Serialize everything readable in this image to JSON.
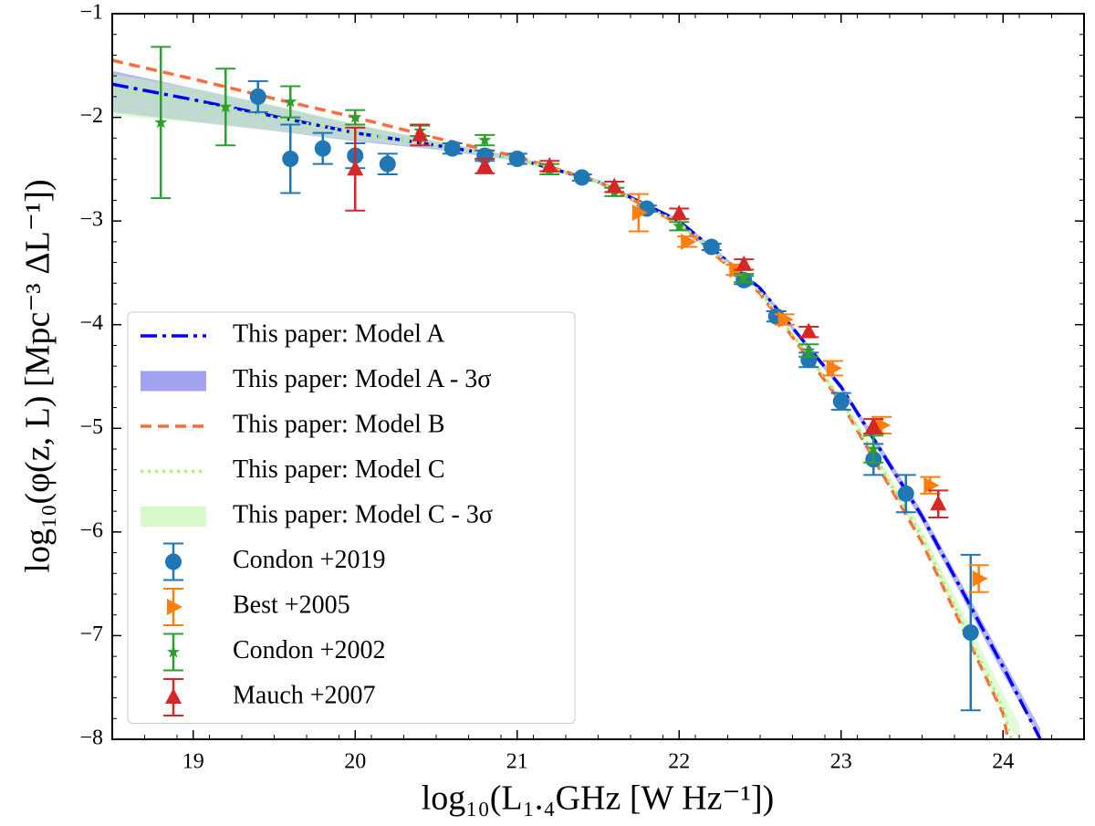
{
  "chart_data": {
    "type": "errorbar",
    "xlabel": "log₁₀(L₁.₄GHz [W Hz⁻¹])",
    "ylabel": "log₁₀(φ(z, L) [Mpc⁻³ ΔL⁻¹])",
    "xlim": [
      18.5,
      24.5
    ],
    "ylim": [
      -8,
      -1
    ],
    "xticks": [
      19,
      20,
      21,
      22,
      23,
      24
    ],
    "yticks": [
      {
        "value": -8,
        "label": "−8"
      },
      {
        "value": -7,
        "label": "−7"
      },
      {
        "value": -6,
        "label": "−6"
      },
      {
        "value": -5,
        "label": "−5"
      },
      {
        "value": -4,
        "label": "−4"
      },
      {
        "value": -3,
        "label": "−3"
      },
      {
        "value": -2,
        "label": "−2"
      },
      {
        "value": -1,
        "label": "−1"
      }
    ],
    "legend": "lower left",
    "series": [
      {
        "name": "This paper: Model A",
        "kind": "line",
        "dash": "dashdot",
        "color": "#0000ff",
        "x": [
          18.5,
          19,
          19.5,
          20,
          20.5,
          21,
          21.5,
          22,
          22.5,
          23,
          23.5,
          24,
          24.23
        ],
        "values": [
          -1.68,
          -1.83,
          -1.99,
          -2.15,
          -2.27,
          -2.4,
          -2.62,
          -3.0,
          -3.65,
          -4.6,
          -5.85,
          -7.3,
          -8.0
        ]
      },
      {
        "name": "This paper: Model A - 3σ",
        "kind": "band",
        "color": "#7b7bea",
        "x": [
          18.5,
          19,
          19.5,
          20,
          20.5,
          21,
          21.5,
          22,
          22.5,
          23,
          23.5,
          24,
          24.23
        ],
        "lower": [
          -1.95,
          -2.04,
          -2.13,
          -2.23,
          -2.31,
          -2.42,
          -2.64,
          -3.02,
          -3.67,
          -4.63,
          -5.9,
          -7.37,
          -8.0
        ],
        "upper": [
          -1.55,
          -1.72,
          -1.89,
          -2.07,
          -2.23,
          -2.38,
          -2.6,
          -2.98,
          -3.63,
          -4.57,
          -5.8,
          -7.23,
          -7.9
        ]
      },
      {
        "name": "This paper: Model B",
        "kind": "line",
        "dash": "dashed",
        "color": "#ff6b3d",
        "x": [
          18.5,
          19,
          19.5,
          20,
          20.5,
          21,
          21.5,
          22,
          22.5,
          23,
          23.5,
          24,
          24.03
        ],
        "values": [
          -1.45,
          -1.63,
          -1.82,
          -2.0,
          -2.2,
          -2.38,
          -2.62,
          -3.03,
          -3.7,
          -4.75,
          -6.1,
          -7.75,
          -8.0
        ]
      },
      {
        "name": "This paper: Model C",
        "kind": "line",
        "dash": "dotted",
        "color": "#a6f27a",
        "x": [
          18.5,
          19,
          19.5,
          20,
          20.5,
          21,
          21.5,
          22,
          22.5,
          23,
          23.5,
          24,
          24.05
        ],
        "values": [
          -1.72,
          -1.86,
          -2.0,
          -2.15,
          -2.27,
          -2.4,
          -2.62,
          -3.02,
          -3.68,
          -4.72,
          -6.05,
          -7.7,
          -8.0
        ]
      },
      {
        "name": "This paper: Model C - 3σ",
        "kind": "band",
        "color": "#c8f7b4",
        "x": [
          18.5,
          19,
          19.5,
          20,
          20.5,
          21,
          21.5,
          22,
          22.5,
          23,
          23.5,
          24,
          24.1
        ],
        "lower": [
          -1.98,
          -2.05,
          -2.13,
          -2.22,
          -2.3,
          -2.42,
          -2.64,
          -3.04,
          -3.7,
          -4.76,
          -6.1,
          -7.8,
          -8.0
        ],
        "upper": [
          -1.58,
          -1.72,
          -1.88,
          -2.06,
          -2.23,
          -2.38,
          -2.6,
          -3.0,
          -3.66,
          -4.68,
          -5.98,
          -7.55,
          -7.85
        ]
      },
      {
        "name": "Condon +2019",
        "kind": "points",
        "marker": "circle",
        "color": "#1f77b4",
        "x": [
          19.4,
          19.6,
          19.8,
          20.0,
          20.2,
          20.6,
          20.8,
          21.0,
          21.4,
          21.8,
          22.2,
          22.4,
          22.6,
          22.8,
          23.0,
          23.2,
          23.4,
          23.8
        ],
        "values": [
          -1.8,
          -2.4,
          -2.3,
          -2.37,
          -2.45,
          -2.3,
          -2.37,
          -2.4,
          -2.58,
          -2.88,
          -3.25,
          -3.57,
          -3.92,
          -4.34,
          -4.74,
          -5.3,
          -5.63,
          -6.97
        ],
        "errors": [
          0.15,
          0.33,
          0.15,
          0.12,
          0.1,
          0.05,
          0.05,
          0.05,
          0.03,
          0.03,
          0.03,
          0.04,
          0.05,
          0.07,
          0.08,
          0.15,
          0.18,
          0.75
        ]
      },
      {
        "name": "Best +2005",
        "kind": "points",
        "marker": "tri-right",
        "color": "#ff7f0e",
        "x": [
          21.75,
          22.05,
          22.35,
          22.65,
          22.95,
          23.25,
          23.55,
          23.85
        ],
        "values": [
          -2.92,
          -3.2,
          -3.47,
          -3.95,
          -4.42,
          -4.97,
          -5.55,
          -6.45
        ],
        "errors": [
          0.18,
          0.05,
          0.05,
          0.05,
          0.07,
          0.08,
          0.08,
          0.13
        ]
      },
      {
        "name": "Condon +2002",
        "kind": "points",
        "marker": "star",
        "color": "#2ca02c",
        "x": [
          18.8,
          19.2,
          19.6,
          20.0,
          20.4,
          20.8,
          21.2,
          21.6,
          22.0,
          22.4,
          22.8,
          23.2
        ],
        "values": [
          -2.05,
          -1.9,
          -1.85,
          -2.0,
          -2.13,
          -2.22,
          -2.5,
          -2.72,
          -3.05,
          -3.55,
          -4.25,
          -5.2
        ],
        "errors": [
          0.73,
          0.37,
          0.15,
          0.07,
          0.05,
          0.05,
          0.05,
          0.04,
          0.04,
          0.04,
          0.06,
          0.13
        ]
      },
      {
        "name": "Mauch +2007",
        "kind": "points",
        "marker": "tri-up",
        "color": "#d62728",
        "x": [
          20.0,
          20.4,
          20.8,
          21.2,
          21.6,
          22.0,
          22.4,
          22.8,
          23.2,
          23.6
        ],
        "values": [
          -2.5,
          -2.17,
          -2.47,
          -2.47,
          -2.67,
          -2.93,
          -3.42,
          -4.07,
          -4.98,
          -5.73
        ],
        "errors": [
          0.4,
          0.1,
          0.07,
          0.05,
          0.05,
          0.05,
          0.05,
          0.05,
          0.07,
          0.13
        ]
      }
    ]
  }
}
